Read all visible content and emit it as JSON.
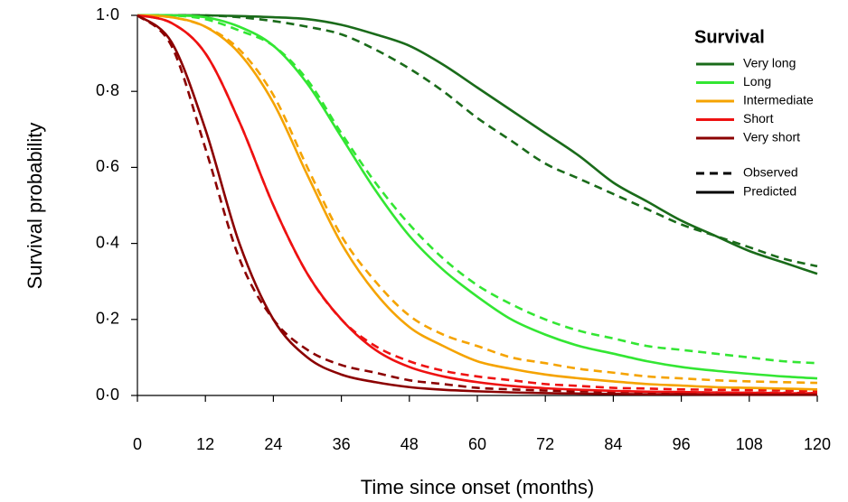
{
  "chart_data": {
    "type": "line",
    "x_label": "Time since onset (months)",
    "y_label": "Survival probability",
    "legend_title": "Survival",
    "x": [
      0,
      6,
      12,
      18,
      24,
      30,
      36,
      42,
      48,
      54,
      60,
      66,
      72,
      78,
      84,
      90,
      96,
      102,
      108,
      114,
      120
    ],
    "xlim": [
      0,
      120
    ],
    "xticks": [
      0,
      12,
      24,
      36,
      48,
      60,
      72,
      84,
      96,
      108,
      120
    ],
    "ylim": [
      0,
      1
    ],
    "yticks": [
      {
        "value": 0,
        "label": "0·0"
      },
      {
        "value": 0.2,
        "label": "0·2"
      },
      {
        "value": 0.4,
        "label": "0·4"
      },
      {
        "value": 0.6,
        "label": "0·6"
      },
      {
        "value": 0.8,
        "label": "0·8"
      },
      {
        "value": 1,
        "label": "1·0"
      }
    ],
    "line_styles": [
      {
        "key": "observed",
        "name": "Observed",
        "dashed": true
      },
      {
        "key": "predicted",
        "name": "Predicted",
        "dashed": false
      }
    ],
    "series": [
      {
        "name": "Very long",
        "color": "#1a6b1a",
        "observed": [
          1,
          1,
          1,
          0.995,
          0.985,
          0.97,
          0.95,
          0.91,
          0.86,
          0.8,
          0.73,
          0.67,
          0.61,
          0.57,
          0.53,
          0.49,
          0.45,
          0.42,
          0.39,
          0.36,
          0.34
        ],
        "predicted": [
          1,
          1,
          1,
          0.998,
          0.995,
          0.99,
          0.975,
          0.95,
          0.92,
          0.87,
          0.81,
          0.75,
          0.69,
          0.63,
          0.56,
          0.51,
          0.46,
          0.42,
          0.38,
          0.35,
          0.32
        ]
      },
      {
        "name": "Long",
        "color": "#33e633",
        "observed": [
          1,
          1,
          0.99,
          0.96,
          0.92,
          0.83,
          0.69,
          0.56,
          0.45,
          0.36,
          0.29,
          0.24,
          0.2,
          0.17,
          0.15,
          0.13,
          0.12,
          0.11,
          0.1,
          0.09,
          0.085
        ],
        "predicted": [
          1,
          1,
          0.995,
          0.97,
          0.92,
          0.82,
          0.68,
          0.54,
          0.42,
          0.33,
          0.26,
          0.2,
          0.16,
          0.13,
          0.11,
          0.09,
          0.075,
          0.065,
          0.057,
          0.05,
          0.045
        ]
      },
      {
        "name": "Intermediate",
        "color": "#f5a300",
        "observed": [
          1,
          0.995,
          0.97,
          0.91,
          0.79,
          0.6,
          0.42,
          0.3,
          0.21,
          0.16,
          0.13,
          0.1,
          0.085,
          0.07,
          0.06,
          0.05,
          0.045,
          0.04,
          0.037,
          0.035,
          0.033
        ],
        "predicted": [
          1,
          0.995,
          0.97,
          0.9,
          0.77,
          0.58,
          0.4,
          0.27,
          0.18,
          0.13,
          0.09,
          0.07,
          0.055,
          0.045,
          0.037,
          0.03,
          0.026,
          0.022,
          0.02,
          0.018,
          0.016
        ]
      },
      {
        "name": "Short",
        "color": "#ee1111",
        "observed": [
          1,
          0.98,
          0.9,
          0.72,
          0.5,
          0.32,
          0.2,
          0.13,
          0.09,
          0.065,
          0.05,
          0.04,
          0.03,
          0.025,
          0.02,
          0.018,
          0.016,
          0.015,
          0.014,
          0.013,
          0.012
        ],
        "predicted": [
          1,
          0.98,
          0.9,
          0.72,
          0.5,
          0.32,
          0.2,
          0.12,
          0.075,
          0.05,
          0.035,
          0.025,
          0.019,
          0.015,
          0.012,
          0.01,
          0.009,
          0.008,
          0.007,
          0.006,
          0.006
        ]
      },
      {
        "name": "Very short",
        "color": "#8b0000",
        "observed": [
          1,
          0.92,
          0.65,
          0.36,
          0.2,
          0.12,
          0.08,
          0.06,
          0.04,
          0.03,
          0.02,
          0.016,
          0.013,
          0.011,
          0.01,
          0.009,
          0.008,
          0.008,
          0.007,
          0.007,
          0.006
        ],
        "predicted": [
          1,
          0.93,
          0.7,
          0.4,
          0.2,
          0.1,
          0.055,
          0.035,
          0.022,
          0.015,
          0.011,
          0.008,
          0.006,
          0.005,
          0.004,
          0.003,
          0.003,
          0.002,
          0.002,
          0.002,
          0.002
        ]
      }
    ]
  }
}
